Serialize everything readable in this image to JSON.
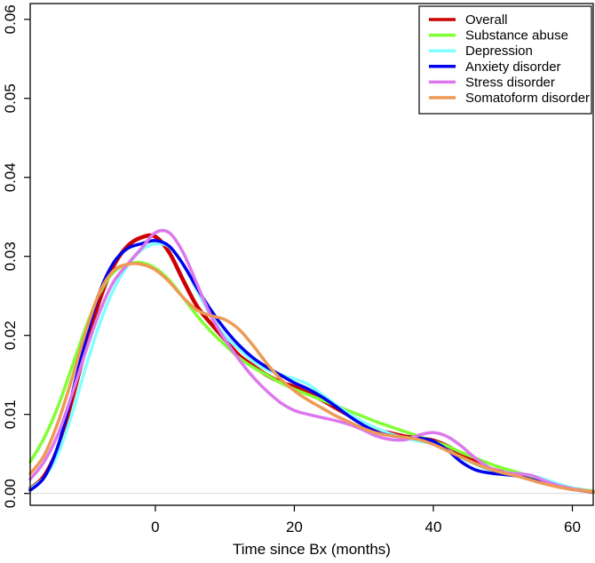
{
  "chart_data": {
    "type": "line",
    "title": "",
    "xlabel": "Time since Bx (months)",
    "ylabel": "",
    "xlim": [
      -18,
      63
    ],
    "ylim": [
      -0.0015,
      0.062
    ],
    "x_ticks": [
      0,
      20,
      40,
      60
    ],
    "x_tick_labels": [
      "0",
      "20",
      "40",
      "60"
    ],
    "y_ticks": [
      0.0,
      0.01,
      0.02,
      0.03,
      0.04,
      0.05,
      0.06
    ],
    "y_tick_labels": [
      "0.00",
      "0.01",
      "0.02",
      "0.03",
      "0.04",
      "0.05",
      "0.06"
    ],
    "grid": false,
    "baseline_y": 0,
    "legend_position": "top-right",
    "series": [
      {
        "name": "Overall",
        "color": "#cc0000",
        "width": 4.5,
        "x": [
          -18,
          -16,
          -14,
          -12,
          -10,
          -8,
          -6,
          -4,
          -2,
          0,
          2,
          4,
          6,
          8,
          10,
          12,
          14,
          16,
          18,
          20,
          22,
          24,
          26,
          28,
          30,
          32,
          34,
          36,
          38,
          40,
          42,
          44,
          46,
          48,
          50,
          52,
          54,
          56,
          58,
          60,
          63
        ],
        "y": [
          0.0006,
          0.0022,
          0.0058,
          0.0118,
          0.0185,
          0.0245,
          0.0288,
          0.0313,
          0.0324,
          0.0325,
          0.0305,
          0.027,
          0.0237,
          0.0215,
          0.0195,
          0.0175,
          0.0162,
          0.015,
          0.0141,
          0.0135,
          0.0127,
          0.0118,
          0.0108,
          0.0098,
          0.0088,
          0.008,
          0.0076,
          0.0072,
          0.007,
          0.0067,
          0.006,
          0.005,
          0.004,
          0.0032,
          0.0027,
          0.0023,
          0.002,
          0.0015,
          0.001,
          0.0006,
          0.0002
        ]
      },
      {
        "name": "Substance abuse",
        "color": "#80ff33",
        "width": 3.5,
        "x": [
          -18,
          -16,
          -14,
          -12,
          -10,
          -8,
          -6,
          -4,
          -2,
          0,
          2,
          4,
          6,
          8,
          10,
          12,
          14,
          16,
          18,
          20,
          22,
          24,
          26,
          28,
          30,
          32,
          34,
          36,
          38,
          40,
          42,
          44,
          46,
          48,
          50,
          52,
          54,
          56,
          58,
          60,
          63
        ],
        "y": [
          0.004,
          0.007,
          0.011,
          0.016,
          0.021,
          0.0253,
          0.028,
          0.029,
          0.0292,
          0.0285,
          0.027,
          0.0248,
          0.0225,
          0.0205,
          0.0188,
          0.0172,
          0.016,
          0.015,
          0.014,
          0.0132,
          0.0125,
          0.0118,
          0.0111,
          0.0104,
          0.0097,
          0.009,
          0.0084,
          0.0078,
          0.0072,
          0.0066,
          0.006,
          0.0052,
          0.0045,
          0.0038,
          0.0032,
          0.0027,
          0.0022,
          0.0016,
          0.0011,
          0.0007,
          0.0003
        ]
      },
      {
        "name": "Depression",
        "color": "#7fffff",
        "width": 3.5,
        "x": [
          -18,
          -16,
          -14,
          -12,
          -10,
          -8,
          -6,
          -4,
          -2,
          0,
          2,
          4,
          6,
          8,
          10,
          12,
          14,
          16,
          18,
          20,
          22,
          24,
          26,
          28,
          30,
          32,
          34,
          36,
          38,
          40,
          42,
          44,
          46,
          48,
          50,
          52,
          54,
          56,
          58,
          60,
          63
        ],
        "y": [
          0.0006,
          0.002,
          0.005,
          0.01,
          0.016,
          0.0215,
          0.0258,
          0.0288,
          0.0308,
          0.0316,
          0.0312,
          0.029,
          0.0257,
          0.0225,
          0.02,
          0.0183,
          0.0168,
          0.0157,
          0.015,
          0.0145,
          0.0138,
          0.0125,
          0.0112,
          0.01,
          0.009,
          0.0082,
          0.0075,
          0.007,
          0.0066,
          0.0063,
          0.0055,
          0.0045,
          0.0037,
          0.003,
          0.0027,
          0.0025,
          0.0023,
          0.0018,
          0.0012,
          0.0007,
          0.0002
        ]
      },
      {
        "name": "Anxiety disorder",
        "color": "#0000ee",
        "width": 3.5,
        "x": [
          -18,
          -16,
          -14,
          -12,
          -10,
          -8,
          -6,
          -4,
          -2,
          0,
          2,
          4,
          6,
          8,
          10,
          12,
          14,
          16,
          18,
          20,
          22,
          24,
          26,
          28,
          30,
          32,
          34,
          36,
          38,
          40,
          42,
          44,
          46,
          48,
          50,
          52,
          54,
          56,
          58,
          60,
          63
        ],
        "y": [
          0.0004,
          0.002,
          0.006,
          0.0125,
          0.0195,
          0.0255,
          0.0292,
          0.031,
          0.0316,
          0.032,
          0.0313,
          0.029,
          0.026,
          0.0232,
          0.0208,
          0.0188,
          0.0172,
          0.016,
          0.015,
          0.014,
          0.0132,
          0.0122,
          0.011,
          0.0097,
          0.0086,
          0.0077,
          0.0073,
          0.0071,
          0.007,
          0.0066,
          0.0055,
          0.004,
          0.003,
          0.0026,
          0.0024,
          0.0022,
          0.0018,
          0.0013,
          0.0009,
          0.0005,
          0.0002
        ]
      },
      {
        "name": "Stress disorder",
        "color": "#dd77ee",
        "width": 3.5,
        "x": [
          -18,
          -16,
          -14,
          -12,
          -10,
          -8,
          -6,
          -4,
          -2,
          0,
          2,
          4,
          6,
          8,
          10,
          12,
          14,
          16,
          18,
          20,
          22,
          24,
          26,
          28,
          30,
          32,
          34,
          36,
          38,
          40,
          42,
          44,
          46,
          48,
          50,
          52,
          54,
          56,
          58,
          60,
          63
        ],
        "y": [
          0.0018,
          0.004,
          0.0075,
          0.0125,
          0.018,
          0.023,
          0.0268,
          0.029,
          0.031,
          0.033,
          0.033,
          0.0305,
          0.0265,
          0.0225,
          0.0195,
          0.017,
          0.0148,
          0.013,
          0.0115,
          0.0105,
          0.01,
          0.0096,
          0.0092,
          0.0087,
          0.008,
          0.0072,
          0.0068,
          0.0068,
          0.0074,
          0.0077,
          0.0072,
          0.006,
          0.0045,
          0.0033,
          0.0027,
          0.0025,
          0.0023,
          0.0016,
          0.001,
          0.0006,
          0.0002
        ]
      },
      {
        "name": "Somatoform disorder",
        "color": "#ee9955",
        "width": 3.5,
        "x": [
          -18,
          -16,
          -14,
          -12,
          -10,
          -8,
          -6,
          -4,
          -2,
          0,
          2,
          4,
          6,
          8,
          10,
          12,
          14,
          16,
          18,
          20,
          22,
          24,
          26,
          28,
          30,
          32,
          34,
          36,
          38,
          40,
          42,
          44,
          46,
          48,
          50,
          52,
          54,
          56,
          58,
          60,
          63
        ],
        "y": [
          0.0025,
          0.0048,
          0.009,
          0.0145,
          0.0205,
          0.0255,
          0.0282,
          0.029,
          0.029,
          0.0283,
          0.0268,
          0.0248,
          0.0232,
          0.0225,
          0.022,
          0.0208,
          0.0188,
          0.0165,
          0.0145,
          0.013,
          0.0118,
          0.0108,
          0.0098,
          0.009,
          0.0082,
          0.0076,
          0.0073,
          0.0071,
          0.0068,
          0.0062,
          0.0054,
          0.0046,
          0.0038,
          0.0031,
          0.0026,
          0.0022,
          0.0017,
          0.0012,
          0.0008,
          0.0005,
          0.0002
        ]
      }
    ]
  }
}
